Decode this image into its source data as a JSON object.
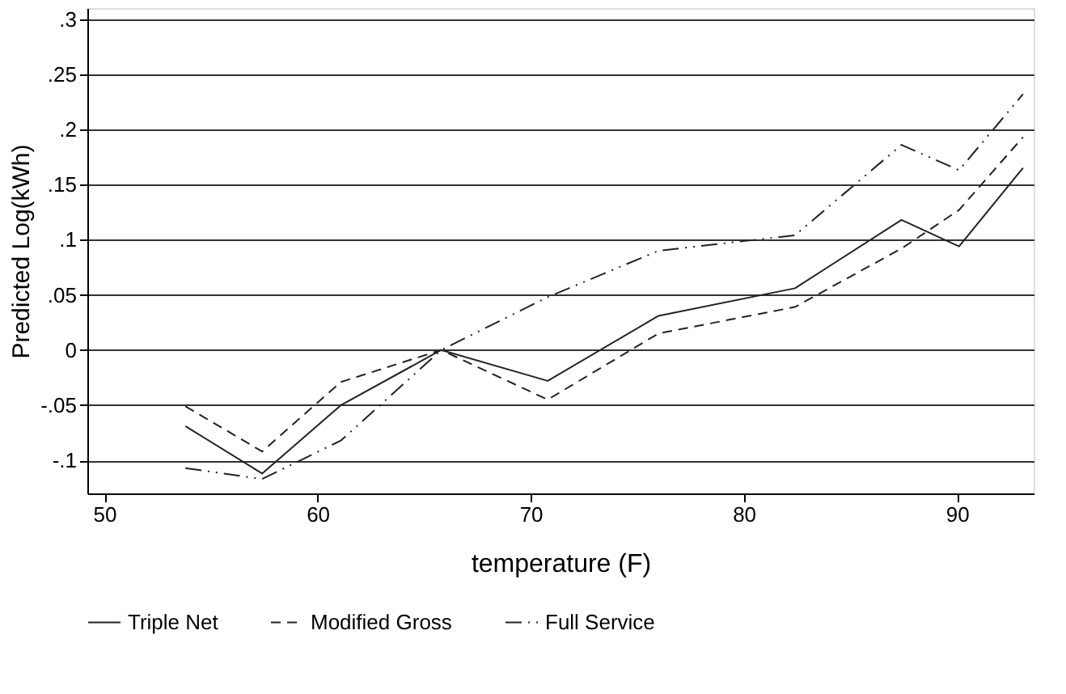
{
  "chart_data": {
    "type": "line",
    "xlabel": "temperature (F)",
    "ylabel": "Predicted Log(kWh)",
    "x": [
      53.8,
      57.4,
      61.1,
      65.8,
      70.8,
      76.0,
      82.4,
      87.4,
      90.1,
      93.1
    ],
    "series": [
      {
        "name": "Triple Net",
        "color": "#222222",
        "line_style": "solid",
        "values": [
          -0.069,
          -0.112,
          -0.05,
          0,
          -0.028,
          0.031,
          0.056,
          0.118,
          0.094,
          0.165
        ]
      },
      {
        "name": "Modified Gross",
        "color": "#222222",
        "line_style": "dashed",
        "values": [
          -0.051,
          -0.092,
          -0.029,
          0,
          -0.045,
          0.015,
          0.039,
          0.092,
          0.127,
          0.193
        ]
      },
      {
        "name": "Full Service",
        "color": "#222222",
        "line_style": "dashdot",
        "values": [
          -0.107,
          -0.117,
          -0.082,
          0,
          0.048,
          0.09,
          0.104,
          0.186,
          0.163,
          0.232
        ]
      }
    ],
    "xlim": [
      49.2,
      93.6
    ],
    "xticks": [
      50,
      60,
      70,
      80,
      90
    ],
    "ylim": [
      -0.13,
      0.31
    ],
    "yticks": [
      {
        "value": -0.1,
        "label": "-.1"
      },
      {
        "value": -0.05,
        "label": "-.05"
      },
      0,
      {
        "value": 0.05,
        "label": ".05"
      },
      {
        "value": 0.1,
        "label": ".1"
      },
      {
        "value": 0.15,
        "label": ".15"
      },
      {
        "value": 0.2,
        "label": ".2"
      },
      {
        "value": 0.25,
        "label": ".25"
      },
      {
        "value": 0.3,
        "label": ".3"
      }
    ],
    "grid": "y",
    "legend": "bottom",
    "marker": "none"
  }
}
